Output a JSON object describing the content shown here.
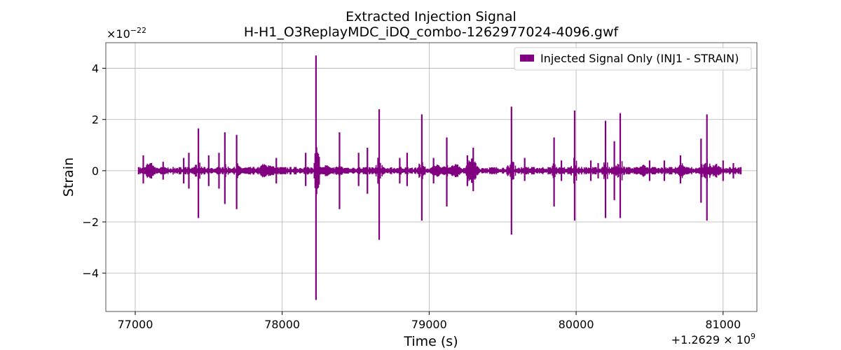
{
  "chart_data": {
    "type": "line",
    "title": "Extracted Injection Signal",
    "subtitle": "H-H1_O3ReplayMDC_iDQ_combo-1262977024-4096.gwf",
    "xlabel": "Time (s)",
    "ylabel": "Strain",
    "x_offset_label": "+1.2629 × 10",
    "x_offset_exp": "9",
    "y_scale_label": "×10",
    "y_scale_exp": "−22",
    "xlim": [
      76800,
      81230
    ],
    "ylim": [
      -5.5,
      5.0
    ],
    "x_ticks": [
      77000,
      78000,
      79000,
      80000,
      81000
    ],
    "x_tick_labels": [
      "77000",
      "78000",
      "79000",
      "80000",
      "81000"
    ],
    "y_ticks": [
      -4,
      -2,
      0,
      2,
      4
    ],
    "y_tick_labels": [
      "−4",
      "−2",
      "0",
      "2",
      "4"
    ],
    "grid": true,
    "legend_position": "top-right",
    "series": [
      {
        "name": "Injected Signal Only (INJ1 - STRAIN)",
        "color": "#800080",
        "x_range": [
          77024,
          81120
        ],
        "baseline_envelope": 0.15,
        "spikes": [
          {
            "x": 77055,
            "max": 0.6,
            "min": -0.5
          },
          {
            "x": 77190,
            "max": 0.35,
            "min": -0.35
          },
          {
            "x": 77330,
            "max": 0.5,
            "min": -0.5
          },
          {
            "x": 77365,
            "max": 0.7,
            "min": -0.7
          },
          {
            "x": 77430,
            "max": 1.65,
            "min": -1.85
          },
          {
            "x": 77500,
            "max": 0.6,
            "min": -0.6
          },
          {
            "x": 77570,
            "max": 0.7,
            "min": -0.7
          },
          {
            "x": 77610,
            "max": 1.5,
            "min": -1.3
          },
          {
            "x": 77690,
            "max": 1.4,
            "min": -1.5
          },
          {
            "x": 77960,
            "max": 0.5,
            "min": -0.5
          },
          {
            "x": 78160,
            "max": 0.7,
            "min": -0.6
          },
          {
            "x": 78230,
            "max": 4.5,
            "min": -5.05
          },
          {
            "x": 78390,
            "max": 1.5,
            "min": -1.5
          },
          {
            "x": 78520,
            "max": 0.7,
            "min": -0.6
          },
          {
            "x": 78580,
            "max": 0.9,
            "min": -0.9
          },
          {
            "x": 78660,
            "max": 2.4,
            "min": -2.7
          },
          {
            "x": 78800,
            "max": 0.5,
            "min": -0.5
          },
          {
            "x": 78850,
            "max": 0.7,
            "min": -0.6
          },
          {
            "x": 78950,
            "max": 2.2,
            "min": -1.95
          },
          {
            "x": 79030,
            "max": 0.5,
            "min": -0.5
          },
          {
            "x": 79120,
            "max": 1.3,
            "min": -1.4
          },
          {
            "x": 79260,
            "max": 0.6,
            "min": -0.6
          },
          {
            "x": 79300,
            "max": 0.9,
            "min": -0.8
          },
          {
            "x": 79560,
            "max": 2.5,
            "min": -2.5
          },
          {
            "x": 79650,
            "max": 0.5,
            "min": -0.4
          },
          {
            "x": 79850,
            "max": 1.3,
            "min": -1.4
          },
          {
            "x": 79900,
            "max": 0.4,
            "min": -0.4
          },
          {
            "x": 79990,
            "max": 2.35,
            "min": -1.95
          },
          {
            "x": 80100,
            "max": 0.4,
            "min": -0.4
          },
          {
            "x": 80150,
            "max": 0.3,
            "min": -0.3
          },
          {
            "x": 80200,
            "max": 1.95,
            "min": -1.85
          },
          {
            "x": 80260,
            "max": 1.15,
            "min": -1.15
          },
          {
            "x": 80300,
            "max": 2.25,
            "min": -1.85
          },
          {
            "x": 80500,
            "max": 0.4,
            "min": -0.4
          },
          {
            "x": 80600,
            "max": 0.4,
            "min": -0.4
          },
          {
            "x": 80710,
            "max": 0.6,
            "min": -0.5
          },
          {
            "x": 80850,
            "max": 1.25,
            "min": -1.25
          },
          {
            "x": 80890,
            "max": 2.2,
            "min": -1.95
          },
          {
            "x": 81000,
            "max": 0.4,
            "min": -0.4
          },
          {
            "x": 81070,
            "max": 0.3,
            "min": -0.3
          }
        ],
        "bursts": [
          {
            "x": 77100,
            "amp": 0.4
          },
          {
            "x": 77880,
            "amp": 0.35
          },
          {
            "x": 77920,
            "amp": 0.3
          },
          {
            "x": 78300,
            "amp": 0.25
          },
          {
            "x": 79050,
            "amp": 0.3
          },
          {
            "x": 79180,
            "amp": 0.35
          },
          {
            "x": 79290,
            "amp": 0.6
          },
          {
            "x": 80270,
            "amp": 0.25
          },
          {
            "x": 80460,
            "amp": 0.25
          },
          {
            "x": 80720,
            "amp": 0.3
          },
          {
            "x": 80950,
            "amp": 0.3
          }
        ]
      }
    ]
  }
}
